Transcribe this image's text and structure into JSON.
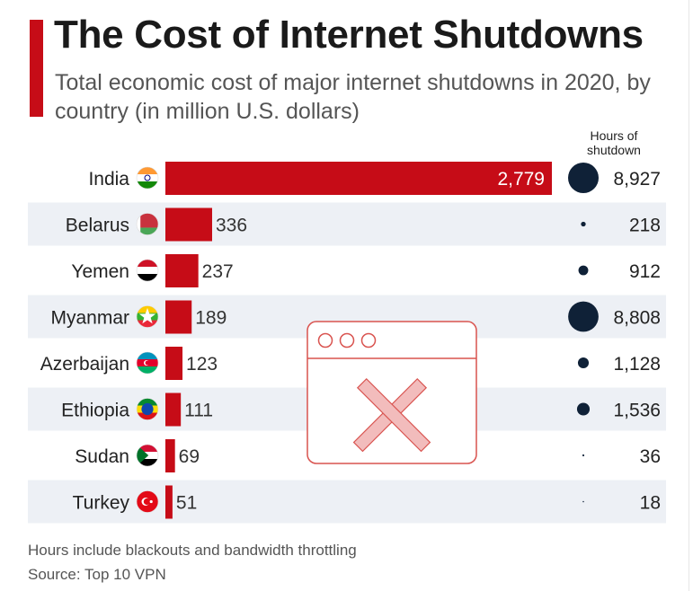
{
  "header": {
    "title": "The Cost of Internet Shutdowns",
    "subtitle": "Total economic cost of major internet shutdowns in 2020, by country (in million U.S. dollars)"
  },
  "hours_column_header": [
    "Hours of",
    "shutdown"
  ],
  "footer": {
    "note": "Hours include blackouts and bandwidth throttling",
    "source": "Source: Top 10 VPN"
  },
  "colors": {
    "bar": "#c60c17",
    "bubble": "#0f2137",
    "row_band": "#edf0f5",
    "accent": "#c60c17",
    "placeholder": "#d9534f"
  },
  "placeholder_icon": "broken-image-icon",
  "chart_data": {
    "type": "bar",
    "orientation": "horizontal",
    "title": "The Cost of Internet Shutdowns",
    "subtitle": "Total economic cost of major internet shutdowns in 2020, by country (in million U.S. dollars)",
    "categories": [
      "India",
      "Belarus",
      "Yemen",
      "Myanmar",
      "Azerbaijan",
      "Ethiopia",
      "Sudan",
      "Turkey"
    ],
    "value_labels": [
      "2,779",
      "336",
      "237",
      "189",
      "123",
      "111",
      "69",
      "51"
    ],
    "values": [
      2779,
      336,
      237,
      189,
      123,
      111,
      69,
      51
    ],
    "hours_labels": [
      "8,927",
      "218",
      "912",
      "8,808",
      "1,128",
      "1,536",
      "36",
      "18"
    ],
    "hours": [
      8927,
      218,
      912,
      8808,
      1128,
      1536,
      36,
      18
    ],
    "flags": [
      "flag-india",
      "flag-belarus",
      "flag-yemen",
      "flag-myanmar",
      "flag-azerbaijan",
      "flag-ethiopia",
      "flag-sudan",
      "flag-turkey"
    ],
    "xlim": [
      0,
      2779
    ],
    "grid": false,
    "legend": "none"
  }
}
